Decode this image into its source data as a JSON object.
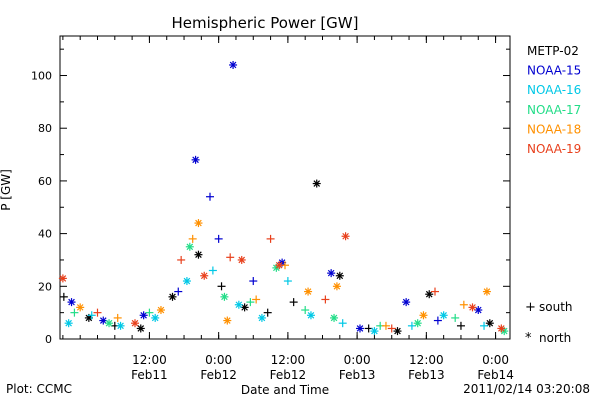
{
  "chart_data": {
    "type": "scatter",
    "title": "Hemispheric Power [GW]",
    "ylabel": "P [GW]",
    "xlabel": "Date and Time",
    "ylim": [
      0,
      115
    ],
    "y_ticks": [
      0,
      20,
      40,
      60,
      80,
      100
    ],
    "xlim": [
      "2011-02-10 20:30",
      "2011-02-14 02:30"
    ],
    "x_ticks": [
      {
        "x": "2011-02-11 12:00",
        "time": "12:00",
        "date": "Feb11"
      },
      {
        "x": "2011-02-12 00:00",
        "time": "0:00",
        "date": "Feb12"
      },
      {
        "x": "2011-02-12 12:00",
        "time": "12:00",
        "date": "Feb12"
      },
      {
        "x": "2011-02-13 00:00",
        "time": "0:00",
        "date": "Feb13"
      },
      {
        "x": "2011-02-13 12:00",
        "time": "12:00",
        "date": "Feb13"
      },
      {
        "x": "2011-02-14 00:00",
        "time": "0:00",
        "date": "Feb14"
      }
    ],
    "marker_legend": [
      {
        "symbol": "+",
        "label": "south"
      },
      {
        "symbol": "*",
        "label": "north"
      }
    ],
    "series": [
      {
        "name": "METP-02",
        "color": "#000000",
        "points": [
          {
            "x": "2011-02-10 21:10",
            "y": 16,
            "hemi": "south"
          },
          {
            "x": "2011-02-11 01:30",
            "y": 8,
            "hemi": "north"
          },
          {
            "x": "2011-02-11 06:00",
            "y": 5,
            "hemi": "south"
          },
          {
            "x": "2011-02-11 10:30",
            "y": 4,
            "hemi": "north"
          },
          {
            "x": "2011-02-11 16:00",
            "y": 16,
            "hemi": "north"
          },
          {
            "x": "2011-02-11 20:30",
            "y": 32,
            "hemi": "north"
          },
          {
            "x": "2011-02-12 00:30",
            "y": 20,
            "hemi": "south"
          },
          {
            "x": "2011-02-12 04:30",
            "y": 12,
            "hemi": "north"
          },
          {
            "x": "2011-02-12 08:30",
            "y": 10,
            "hemi": "south"
          },
          {
            "x": "2011-02-12 13:00",
            "y": 14,
            "hemi": "south"
          },
          {
            "x": "2011-02-12 17:00",
            "y": 59,
            "hemi": "north"
          },
          {
            "x": "2011-02-12 21:00",
            "y": 24,
            "hemi": "north"
          },
          {
            "x": "2011-02-13 02:00",
            "y": 4,
            "hemi": "south"
          },
          {
            "x": "2011-02-13 07:00",
            "y": 3,
            "hemi": "north"
          },
          {
            "x": "2011-02-13 12:30",
            "y": 17,
            "hemi": "north"
          },
          {
            "x": "2011-02-13 18:00",
            "y": 5,
            "hemi": "south"
          },
          {
            "x": "2011-02-13 23:00",
            "y": 6,
            "hemi": "north"
          }
        ]
      },
      {
        "name": "NOAA-15",
        "color": "#0000d0",
        "points": [
          {
            "x": "2011-02-10 22:30",
            "y": 14,
            "hemi": "north"
          },
          {
            "x": "2011-02-11 04:00",
            "y": 7,
            "hemi": "north"
          },
          {
            "x": "2011-02-11 11:00",
            "y": 9,
            "hemi": "north"
          },
          {
            "x": "2011-02-11 17:00",
            "y": 18,
            "hemi": "south"
          },
          {
            "x": "2011-02-11 20:00",
            "y": 68,
            "hemi": "north"
          },
          {
            "x": "2011-02-11 22:30",
            "y": 54,
            "hemi": "south"
          },
          {
            "x": "2011-02-12 00:00",
            "y": 38,
            "hemi": "south"
          },
          {
            "x": "2011-02-12 02:30",
            "y": 104,
            "hemi": "north"
          },
          {
            "x": "2011-02-12 06:00",
            "y": 22,
            "hemi": "south"
          },
          {
            "x": "2011-02-12 11:00",
            "y": 29,
            "hemi": "north"
          },
          {
            "x": "2011-02-12 19:30",
            "y": 25,
            "hemi": "north"
          },
          {
            "x": "2011-02-13 00:30",
            "y": 4,
            "hemi": "north"
          },
          {
            "x": "2011-02-13 08:30",
            "y": 14,
            "hemi": "north"
          },
          {
            "x": "2011-02-13 14:00",
            "y": 7,
            "hemi": "south"
          },
          {
            "x": "2011-02-13 21:00",
            "y": 11,
            "hemi": "north"
          }
        ]
      },
      {
        "name": "NOAA-16",
        "color": "#00c8e6",
        "points": [
          {
            "x": "2011-02-10 22:00",
            "y": 6,
            "hemi": "north"
          },
          {
            "x": "2011-02-11 02:00",
            "y": 9,
            "hemi": "south"
          },
          {
            "x": "2011-02-11 07:00",
            "y": 5,
            "hemi": "north"
          },
          {
            "x": "2011-02-11 13:00",
            "y": 8,
            "hemi": "north"
          },
          {
            "x": "2011-02-11 18:30",
            "y": 22,
            "hemi": "north"
          },
          {
            "x": "2011-02-11 23:00",
            "y": 26,
            "hemi": "south"
          },
          {
            "x": "2011-02-12 03:30",
            "y": 13,
            "hemi": "north"
          },
          {
            "x": "2011-02-12 07:30",
            "y": 8,
            "hemi": "north"
          },
          {
            "x": "2011-02-12 12:00",
            "y": 22,
            "hemi": "south"
          },
          {
            "x": "2011-02-12 16:00",
            "y": 9,
            "hemi": "north"
          },
          {
            "x": "2011-02-12 21:30",
            "y": 6,
            "hemi": "south"
          },
          {
            "x": "2011-02-13 03:00",
            "y": 3,
            "hemi": "north"
          },
          {
            "x": "2011-02-13 09:30",
            "y": 5,
            "hemi": "south"
          },
          {
            "x": "2011-02-13 15:00",
            "y": 9,
            "hemi": "north"
          },
          {
            "x": "2011-02-13 22:00",
            "y": 5,
            "hemi": "south"
          }
        ]
      },
      {
        "name": "NOAA-17",
        "color": "#22dd88",
        "points": [
          {
            "x": "2011-02-10 23:00",
            "y": 10,
            "hemi": "south"
          },
          {
            "x": "2011-02-11 05:00",
            "y": 6,
            "hemi": "north"
          },
          {
            "x": "2011-02-11 12:00",
            "y": 10,
            "hemi": "south"
          },
          {
            "x": "2011-02-11 19:00",
            "y": 35,
            "hemi": "north"
          },
          {
            "x": "2011-02-12 01:00",
            "y": 16,
            "hemi": "north"
          },
          {
            "x": "2011-02-12 05:30",
            "y": 14,
            "hemi": "south"
          },
          {
            "x": "2011-02-12 10:00",
            "y": 27,
            "hemi": "north"
          },
          {
            "x": "2011-02-12 15:00",
            "y": 11,
            "hemi": "south"
          },
          {
            "x": "2011-02-12 20:00",
            "y": 8,
            "hemi": "north"
          },
          {
            "x": "2011-02-13 04:00",
            "y": 5,
            "hemi": "south"
          },
          {
            "x": "2011-02-13 10:30",
            "y": 6,
            "hemi": "north"
          },
          {
            "x": "2011-02-13 17:00",
            "y": 8,
            "hemi": "south"
          },
          {
            "x": "2011-02-14 01:30",
            "y": 3,
            "hemi": "north"
          }
        ]
      },
      {
        "name": "NOAA-18",
        "color": "#ff9000",
        "points": [
          {
            "x": "2011-02-11 00:00",
            "y": 12,
            "hemi": "north"
          },
          {
            "x": "2011-02-11 06:30",
            "y": 8,
            "hemi": "south"
          },
          {
            "x": "2011-02-11 14:00",
            "y": 11,
            "hemi": "north"
          },
          {
            "x": "2011-02-11 19:30",
            "y": 38,
            "hemi": "south"
          },
          {
            "x": "2011-02-11 20:30",
            "y": 44,
            "hemi": "north"
          },
          {
            "x": "2011-02-12 01:30",
            "y": 7,
            "hemi": "north"
          },
          {
            "x": "2011-02-12 06:30",
            "y": 15,
            "hemi": "south"
          },
          {
            "x": "2011-02-12 11:30",
            "y": 28,
            "hemi": "south"
          },
          {
            "x": "2011-02-12 15:30",
            "y": 18,
            "hemi": "north"
          },
          {
            "x": "2011-02-12 20:30",
            "y": 20,
            "hemi": "north"
          },
          {
            "x": "2011-02-13 05:00",
            "y": 5,
            "hemi": "south"
          },
          {
            "x": "2011-02-13 11:30",
            "y": 9,
            "hemi": "north"
          },
          {
            "x": "2011-02-13 18:30",
            "y": 13,
            "hemi": "south"
          },
          {
            "x": "2011-02-13 22:30",
            "y": 18,
            "hemi": "north"
          }
        ]
      },
      {
        "name": "NOAA-19",
        "color": "#e8401c",
        "points": [
          {
            "x": "2011-02-10 21:00",
            "y": 23,
            "hemi": "north"
          },
          {
            "x": "2011-02-11 03:00",
            "y": 10,
            "hemi": "south"
          },
          {
            "x": "2011-02-11 09:30",
            "y": 6,
            "hemi": "north"
          },
          {
            "x": "2011-02-11 17:30",
            "y": 30,
            "hemi": "south"
          },
          {
            "x": "2011-02-11 21:30",
            "y": 24,
            "hemi": "north"
          },
          {
            "x": "2011-02-12 02:00",
            "y": 31,
            "hemi": "south"
          },
          {
            "x": "2011-02-12 04:00",
            "y": 30,
            "hemi": "north"
          },
          {
            "x": "2011-02-12 09:00",
            "y": 38,
            "hemi": "south"
          },
          {
            "x": "2011-02-12 10:30",
            "y": 28,
            "hemi": "north"
          },
          {
            "x": "2011-02-12 18:30",
            "y": 15,
            "hemi": "south"
          },
          {
            "x": "2011-02-12 22:00",
            "y": 39,
            "hemi": "north"
          },
          {
            "x": "2011-02-13 06:00",
            "y": 4,
            "hemi": "south"
          },
          {
            "x": "2011-02-13 13:30",
            "y": 18,
            "hemi": "south"
          },
          {
            "x": "2011-02-13 20:00",
            "y": 12,
            "hemi": "north"
          },
          {
            "x": "2011-02-14 01:00",
            "y": 4,
            "hemi": "north"
          }
        ]
      }
    ]
  },
  "footer": {
    "plot_credit": "Plot: CCMC",
    "timestamp": "2011/02/14 03:20:08"
  }
}
